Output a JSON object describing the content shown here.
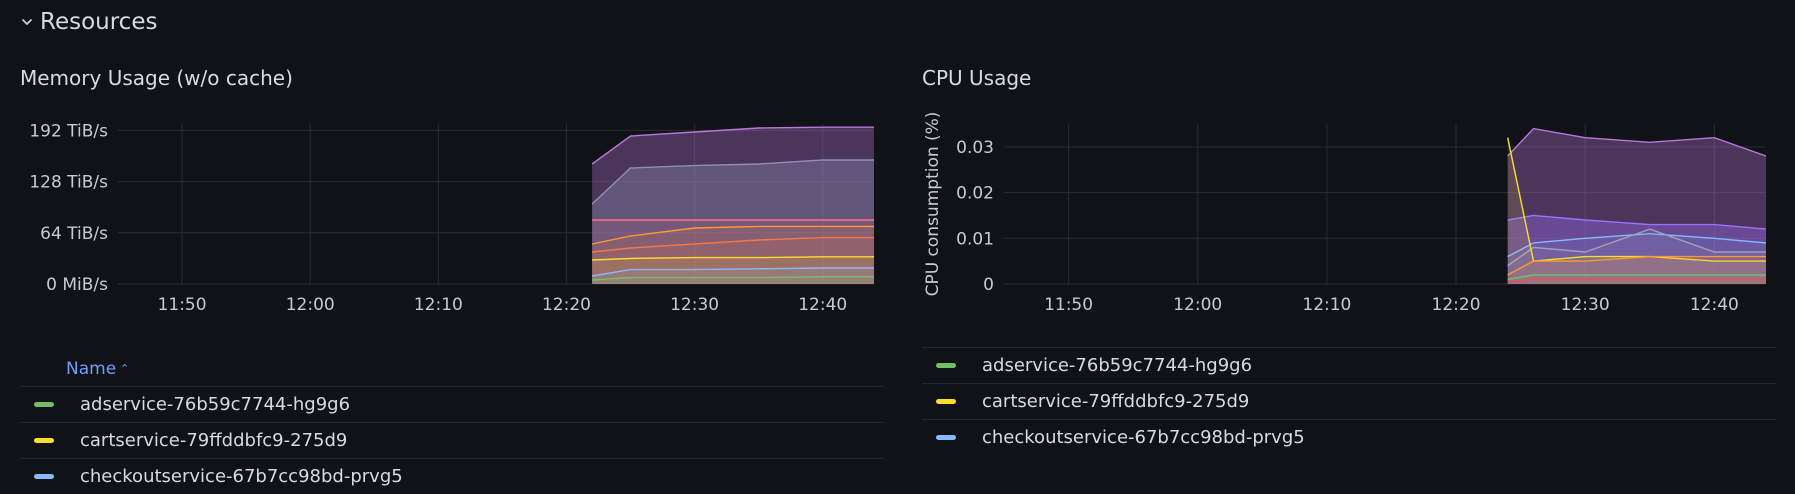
{
  "row": {
    "title": "Resources",
    "icon": "chevron-down-icon"
  },
  "panels": {
    "memory": {
      "title": "Memory Usage (w/o cache)",
      "y_tick_labels": [
        "192 TiB/s",
        "128 TiB/s",
        "64 TiB/s",
        "0 MiB/s"
      ],
      "x_tick_labels": [
        "11:50",
        "12:00",
        "12:10",
        "12:20",
        "12:30",
        "12:40"
      ],
      "legend_header": "Name",
      "legend": [
        {
          "name": "adservice-76b59c7744-hg9g6",
          "color": "#73bf69"
        },
        {
          "name": "cartservice-79ffddbfc9-275d9",
          "color": "#fade2a"
        },
        {
          "name": "checkoutservice-67b7cc98bd-prvg5",
          "color": "#8ab8ff"
        }
      ]
    },
    "cpu": {
      "title": "CPU Usage",
      "y_axis_title": "CPU consumption (%)",
      "y_tick_labels": [
        "0.03",
        "0.02",
        "0.01",
        "0"
      ],
      "x_tick_labels": [
        "11:50",
        "12:00",
        "12:10",
        "12:20",
        "12:30",
        "12:40"
      ],
      "legend_header": "Name",
      "legend": [
        {
          "name": "adservice-76b59c7744-hg9g6",
          "color": "#73bf69"
        },
        {
          "name": "cartservice-79ffddbfc9-275d9",
          "color": "#fade2a"
        },
        {
          "name": "checkoutservice-67b7cc98bd-prvg5",
          "color": "#8ab8ff"
        }
      ]
    }
  },
  "chart_data": [
    {
      "type": "area",
      "title": "Memory Usage (w/o cache)",
      "x": [
        "12:22",
        "12:25",
        "12:30",
        "12:35",
        "12:40",
        "12:44"
      ],
      "ylim": [
        0,
        200
      ],
      "y_unit": "TiB/s",
      "series": [
        {
          "color": "#b877d9",
          "values": [
            150,
            185,
            190,
            195,
            196,
            196
          ]
        },
        {
          "color": "#8f8fb5",
          "values": [
            100,
            145,
            148,
            150,
            155,
            155
          ]
        },
        {
          "color": "#ff7383",
          "values": [
            80,
            80,
            80,
            80,
            80,
            80
          ]
        },
        {
          "color": "#ff9830",
          "values": [
            50,
            60,
            70,
            72,
            72,
            72
          ]
        },
        {
          "color": "#f2784b",
          "values": [
            40,
            45,
            50,
            55,
            58,
            58
          ]
        },
        {
          "color": "#fade2a",
          "values": [
            30,
            32,
            33,
            33,
            34,
            34
          ]
        },
        {
          "color": "#8ab8ff",
          "values": [
            10,
            18,
            18,
            19,
            20,
            20
          ]
        },
        {
          "color": "#73bf69",
          "values": [
            5,
            8,
            8,
            8,
            9,
            9
          ]
        }
      ]
    },
    {
      "type": "area",
      "title": "CPU Usage",
      "ylabel": "CPU consumption (%)",
      "x": [
        "12:24",
        "12:26",
        "12:30",
        "12:35",
        "12:40",
        "12:44"
      ],
      "ylim": [
        0,
        0.035
      ],
      "series": [
        {
          "color": "#b877d9",
          "values": [
            0.028,
            0.034,
            0.032,
            0.031,
            0.032,
            0.028
          ]
        },
        {
          "color": "#9d70ff",
          "values": [
            0.014,
            0.015,
            0.014,
            0.013,
            0.013,
            0.012
          ]
        },
        {
          "color": "#8ab8ff",
          "values": [
            0.006,
            0.009,
            0.01,
            0.011,
            0.01,
            0.009
          ]
        },
        {
          "color": "#a0a0b4",
          "values": [
            0.004,
            0.008,
            0.007,
            0.012,
            0.007,
            0.007
          ]
        },
        {
          "color": "#fade2a",
          "values": [
            0.032,
            0.005,
            0.006,
            0.006,
            0.005,
            0.005
          ]
        },
        {
          "color": "#ff9830",
          "values": [
            0.002,
            0.005,
            0.005,
            0.006,
            0.006,
            0.006
          ]
        },
        {
          "color": "#73bf69",
          "values": [
            0.001,
            0.002,
            0.002,
            0.002,
            0.002,
            0.002
          ]
        },
        {
          "color": "#f2495c",
          "values": [
            0.0005,
            0.001,
            0.001,
            0.001,
            0.001,
            0.001
          ]
        }
      ]
    }
  ]
}
